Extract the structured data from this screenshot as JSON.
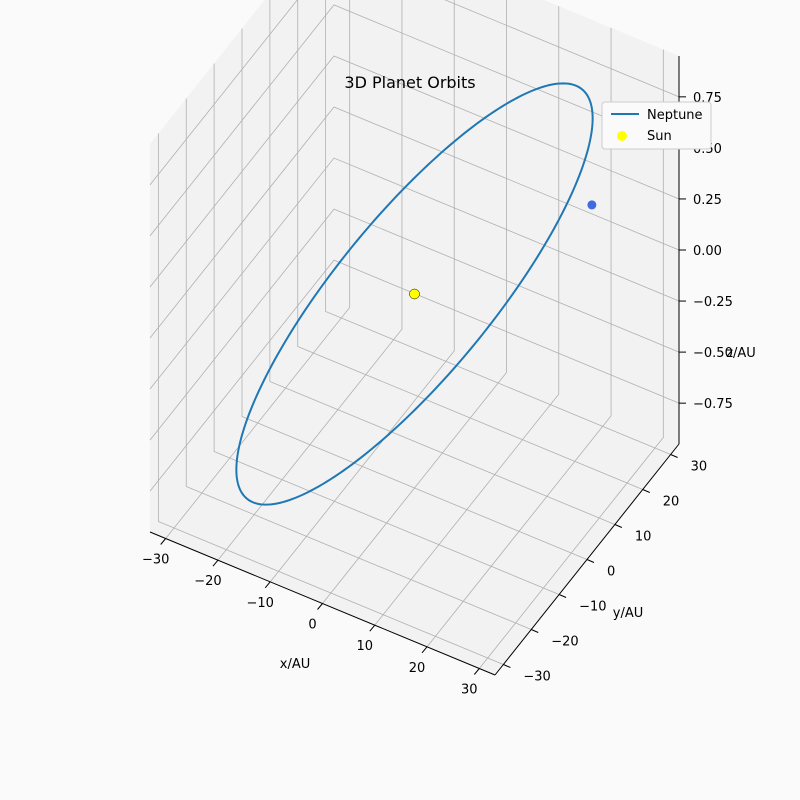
{
  "chart_data": {
    "type": "line",
    "projection": "3d",
    "title": "3D Planet Orbits",
    "xlabel": "x/AU",
    "ylabel": "y/AU",
    "zlabel": "z/AU",
    "xlim": [
      -33,
      33
    ],
    "ylim": [
      -33,
      33
    ],
    "zlim": [
      -0.95,
      0.95
    ],
    "xticks": [
      "−30",
      "−20",
      "−10",
      "0",
      "10",
      "20",
      "30"
    ],
    "yticks": [
      "−30",
      "−20",
      "−10",
      "0",
      "10",
      "20",
      "30"
    ],
    "zticks": [
      "−0.75",
      "−0.50",
      "−0.25",
      "0.00",
      "0.25",
      "0.50",
      "0.75"
    ],
    "xtick_values": [
      -30,
      -20,
      -10,
      0,
      10,
      20,
      30
    ],
    "ytick_values": [
      -30,
      -20,
      -10,
      0,
      10,
      20,
      30
    ],
    "ztick_values": [
      -0.75,
      -0.5,
      -0.25,
      0,
      0.25,
      0.5,
      0.75
    ],
    "grid": true,
    "legend_placement": "top-right",
    "series": [
      {
        "name": "Neptune",
        "kind": "orbit",
        "semi_major_axis_au": 30.07,
        "inclination_deg": 1.77,
        "color": "#1f77b4"
      }
    ],
    "points": [
      {
        "name": "Sun",
        "x": 0,
        "y": 0,
        "z": 0,
        "color": "#ffff00",
        "edge": "#000000"
      },
      {
        "name": "Neptune position",
        "x": 27,
        "y": 13,
        "z": 0.5,
        "color": "#4169e1"
      }
    ],
    "legend": [
      {
        "label": "Neptune",
        "marker": "line",
        "color": "#1f77b4"
      },
      {
        "label": "Sun",
        "marker": "dot",
        "color": "#ffff00"
      }
    ],
    "colors": {
      "pane": "#f2f2f2",
      "grid": "#b0b0b0",
      "axis": "#000000",
      "background": "#fafafa"
    }
  }
}
